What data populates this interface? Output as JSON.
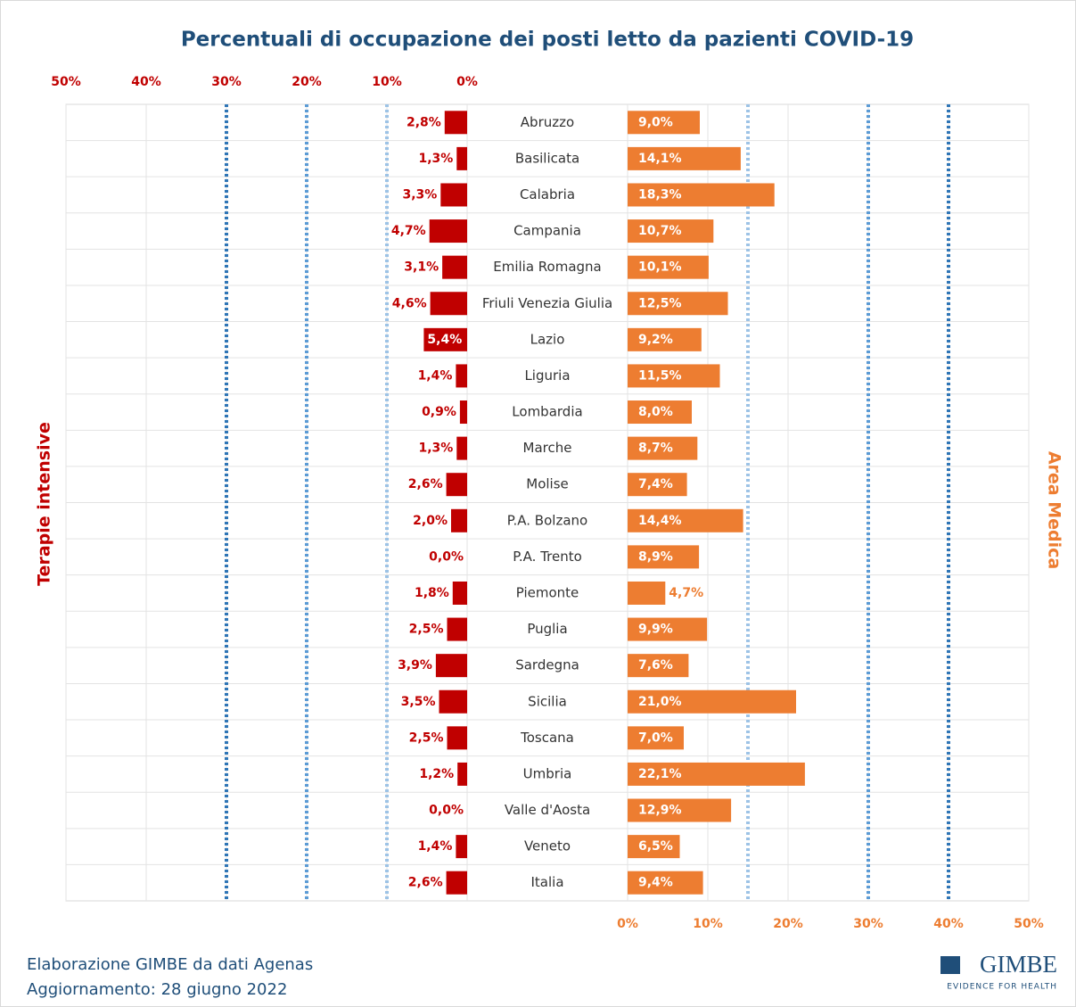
{
  "chart_data": {
    "type": "butterfly",
    "title": "Percentuali di occupazione dei posti letto da pazienti COVID-19",
    "categories": [
      "Abruzzo",
      "Basilicata",
      "Calabria",
      "Campania",
      "Emilia Romagna",
      "Friuli Venezia Giulia",
      "Lazio",
      "Liguria",
      "Lombardia",
      "Marche",
      "Molise",
      "P.A. Bolzano",
      "P.A. Trento",
      "Piemonte",
      "Puglia",
      "Sardegna",
      "Sicilia",
      "Toscana",
      "Umbria",
      "Valle d'Aosta",
      "Veneto",
      "Italia"
    ],
    "series": [
      {
        "name": "Terapie intensive",
        "color": "#c00000",
        "values": [
          2.8,
          1.3,
          3.3,
          4.7,
          3.1,
          4.6,
          5.4,
          1.4,
          0.9,
          1.3,
          2.6,
          2.0,
          0.0,
          1.8,
          2.5,
          3.9,
          3.5,
          2.5,
          1.2,
          0.0,
          1.4,
          2.6
        ],
        "value_labels": [
          "2,8%",
          "1,3%",
          "3,3%",
          "4,7%",
          "3,1%",
          "4,6%",
          "5,4%",
          "1,4%",
          "0,9%",
          "1,3%",
          "2,6%",
          "2,0%",
          "0,0%",
          "1,8%",
          "2,5%",
          "3,9%",
          "3,5%",
          "2,5%",
          "1,2%",
          "0,0%",
          "1,4%",
          "2,6%"
        ],
        "xlim": [
          0,
          50
        ],
        "xticks": [
          {
            "value": 0,
            "label": "0%"
          },
          {
            "value": 10,
            "label": "10%"
          },
          {
            "value": 20,
            "label": "20%"
          },
          {
            "value": 30,
            "label": "30%"
          },
          {
            "value": 40,
            "label": "40%"
          },
          {
            "value": 50,
            "label": "50%"
          }
        ],
        "thresholds": [
          10,
          20,
          30
        ]
      },
      {
        "name": "Area Medica",
        "color": "#ed7d31",
        "values": [
          9.0,
          14.1,
          18.3,
          10.7,
          10.1,
          12.5,
          9.2,
          11.5,
          8.0,
          8.7,
          7.4,
          14.4,
          8.9,
          4.7,
          9.9,
          7.6,
          21.0,
          7.0,
          22.1,
          12.9,
          6.5,
          9.4
        ],
        "value_labels": [
          "9,0%",
          "14,1%",
          "18,3%",
          "10,7%",
          "10,1%",
          "12,5%",
          "9,2%",
          "11,5%",
          "8,0%",
          "8,7%",
          "7,4%",
          "14,4%",
          "8,9%",
          "4,7%",
          "9,9%",
          "7,6%",
          "21,0%",
          "7,0%",
          "22,1%",
          "12,9%",
          "6,5%",
          "9,4%"
        ],
        "xlim": [
          0,
          50
        ],
        "xticks": [
          {
            "value": 0,
            "label": "0%"
          },
          {
            "value": 10,
            "label": "10%"
          },
          {
            "value": 20,
            "label": "20%"
          },
          {
            "value": 30,
            "label": "30%"
          },
          {
            "value": 40,
            "label": "40%"
          },
          {
            "value": 50,
            "label": "50%"
          }
        ],
        "thresholds": [
          15,
          30,
          40
        ]
      }
    ],
    "threshold_colors": [
      "#9dc3e6",
      "#5b9bd5",
      "#2e75b6"
    ],
    "grid": true,
    "source": "Elaborazione GIMBE da dati Agenas",
    "updated": "Aggiornamento: 28 giugno 2022",
    "logo": "GIMBE",
    "logo_tagline": "EVIDENCE FOR HEALTH"
  }
}
